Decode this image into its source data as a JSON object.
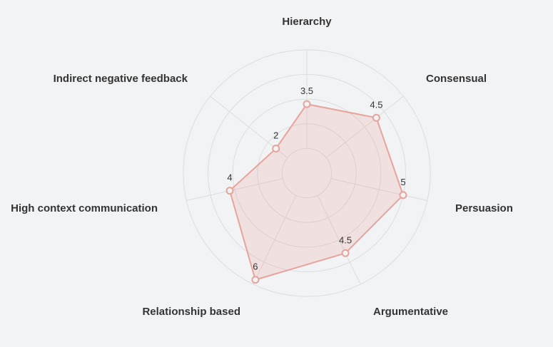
{
  "chart_data": {
    "type": "radar",
    "categories": [
      "Hierarchy",
      "Consensual",
      "Persuasion",
      "Argumentative",
      "Relationship based",
      "High context communication",
      "Indirect negative feedback"
    ],
    "value_labels": [
      "3.5",
      "4.5",
      "5",
      "4.5",
      "6",
      "4",
      "2"
    ],
    "series": [
      {
        "values": [
          3.5,
          4.5,
          5,
          4.5,
          6,
          4,
          2
        ]
      }
    ],
    "rmax": 6.5,
    "grid_rings": [
      1.25,
      2.5,
      3.75,
      5,
      6.25
    ],
    "grid": true,
    "colors": {
      "series": "#e8a39b",
      "grid": "#dcdde1",
      "background": "#f2f3f5"
    }
  }
}
